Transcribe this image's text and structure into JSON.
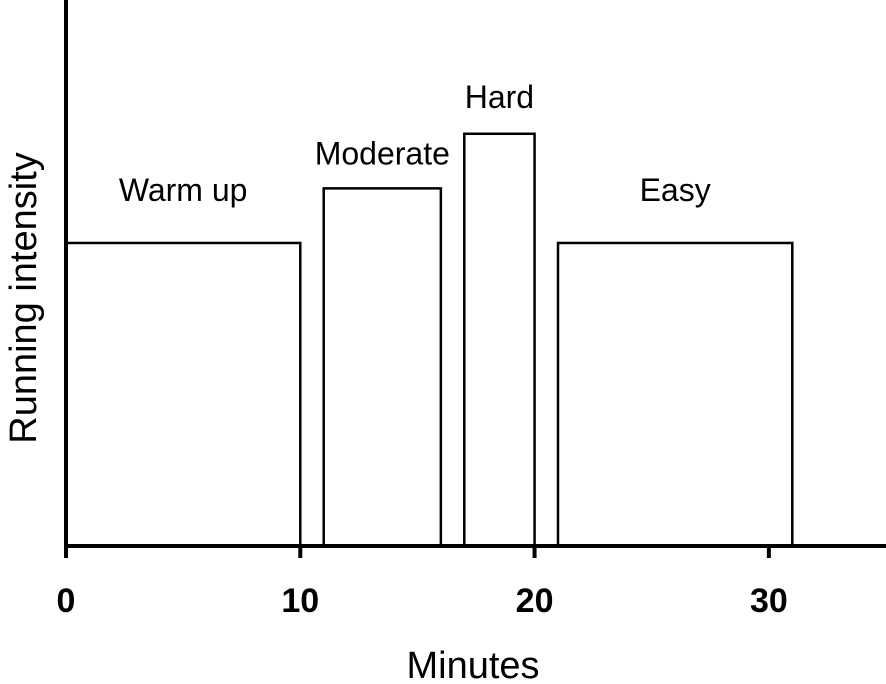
{
  "chart_data": {
    "type": "bar",
    "xlabel": "Minutes",
    "ylabel": "Running intensity",
    "xlim": [
      0,
      35
    ],
    "ylim": [
      0,
      10
    ],
    "x_ticks": [
      0,
      10,
      20,
      30
    ],
    "grid": false,
    "legend": "none",
    "segments": [
      {
        "label": "Warm up",
        "start": 0,
        "end": 10,
        "value": 5.55
      },
      {
        "label": "Moderate",
        "start": 11,
        "end": 16,
        "value": 6.55
      },
      {
        "label": "Hard",
        "start": 17,
        "end": 20,
        "value": 7.55
      },
      {
        "label": "Easy",
        "start": 21,
        "end": 31,
        "value": 5.55
      }
    ],
    "colors": {
      "bar_fill": "#ffffff",
      "bar_stroke": "#000000",
      "axis": "#000000"
    }
  }
}
